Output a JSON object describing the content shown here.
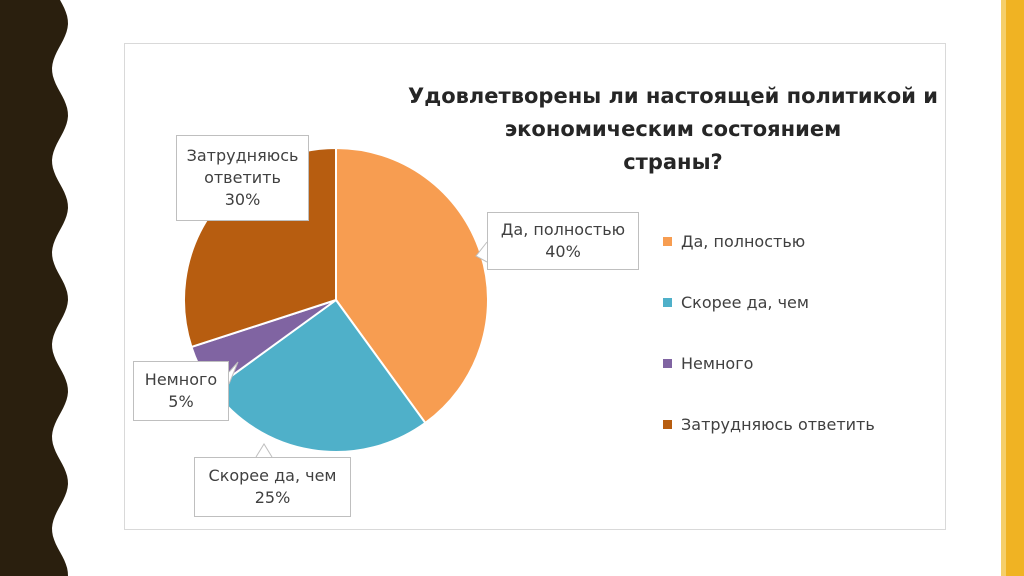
{
  "colors": {
    "left_band": "#2a1f0e",
    "right_bar": "#f0b323",
    "right_bar_edge": "#f5cf6a"
  },
  "chart_data": {
    "type": "pie",
    "title": [
      "Удовлетворены ли настоящей политикой и",
      "экономическим состоянием",
      "страны?"
    ],
    "legend_position": "right",
    "slices": [
      {
        "name": "Да, полностью",
        "value": 40,
        "label": [
          "Да, полностью",
          "40%"
        ],
        "color": "#f79d51"
      },
      {
        "name": "Скорее да, чем",
        "value": 25,
        "label": [
          "Скорее да, чем",
          "25%"
        ],
        "color": "#4fb0c9"
      },
      {
        "name": "Немного",
        "value": 5,
        "label": [
          "Немного",
          "5%"
        ],
        "color": "#8064a2"
      },
      {
        "name": "Затрудняюсь ответить",
        "value": 30,
        "label": [
          "Затрудняюсь",
          "ответить",
          "30%"
        ],
        "color": "#b75d10"
      }
    ]
  }
}
